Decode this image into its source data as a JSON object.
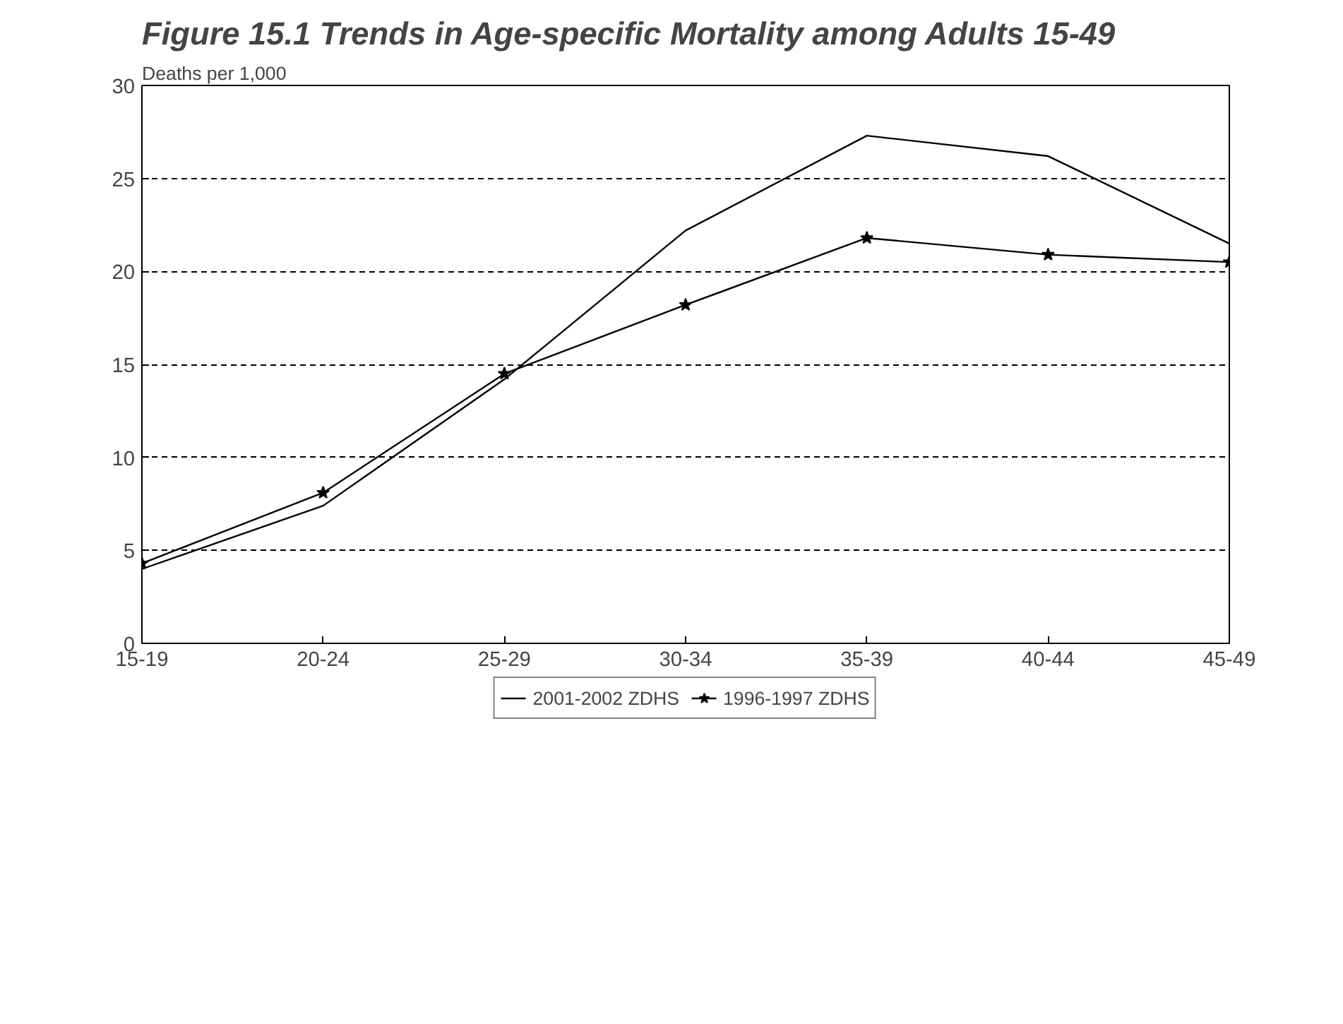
{
  "chart_data": {
    "type": "line",
    "title": "Figure 15.1 Trends in Age-specific Mortality among Adults 15-49",
    "ylabel": "Deaths per 1,000",
    "categories": [
      "15-19",
      "20-24",
      "25-29",
      "30-34",
      "35-39",
      "40-44",
      "45-49"
    ],
    "series": [
      {
        "name": "2001-2002 ZDHS",
        "color": "#000000",
        "marker": "none",
        "values": [
          4.0,
          7.4,
          14.2,
          22.2,
          27.3,
          26.2,
          21.5
        ]
      },
      {
        "name": "1996-1997 ZDHS",
        "color": "#000000",
        "marker": "star",
        "values": [
          4.3,
          8.1,
          14.5,
          18.2,
          21.8,
          20.9,
          20.5
        ]
      }
    ],
    "ylim": [
      0,
      30
    ],
    "yticks": [
      0,
      5,
      10,
      15,
      20,
      25,
      30
    ],
    "grid": "y",
    "legend": "bottom",
    "line_style": "solid"
  }
}
